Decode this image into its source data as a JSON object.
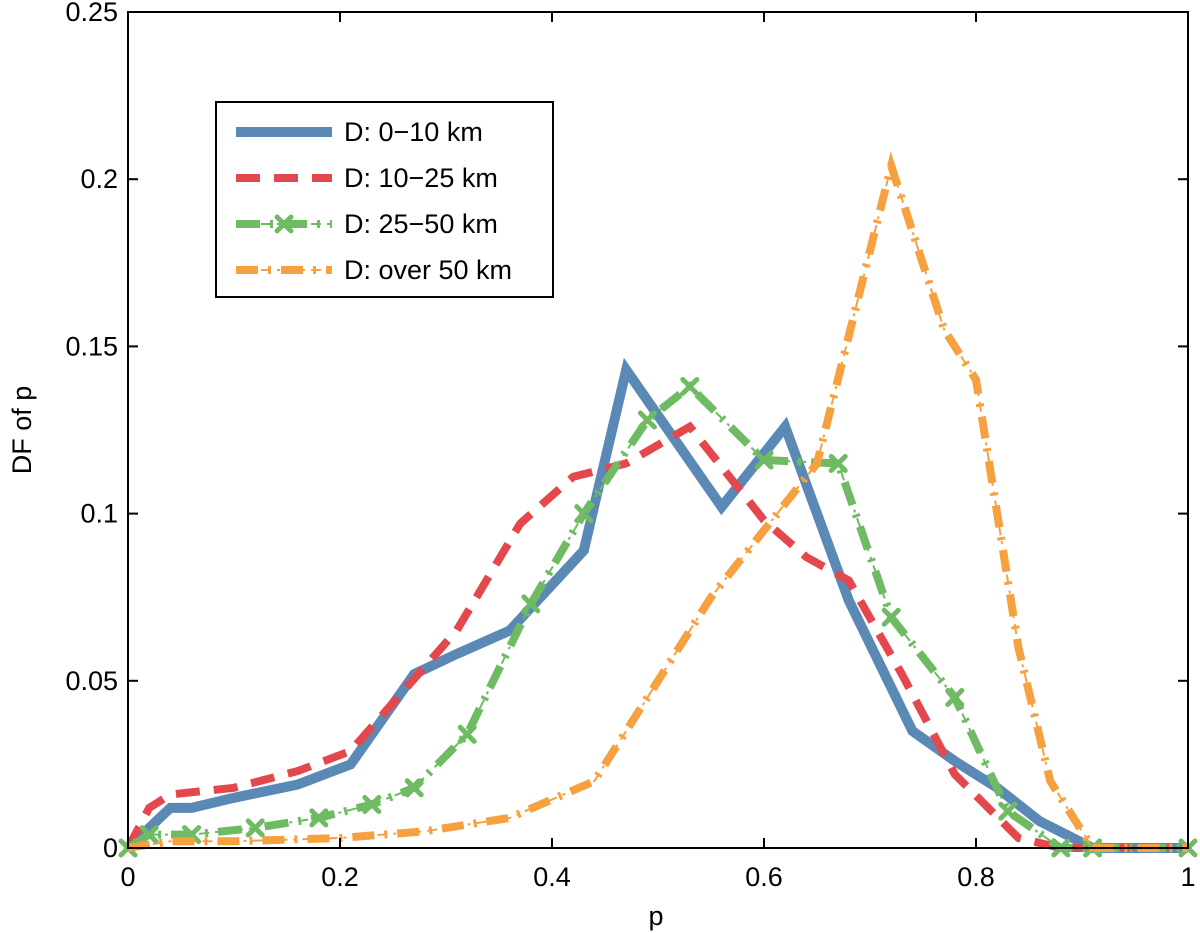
{
  "chart_data": {
    "type": "line",
    "title": "",
    "xlabel": "p",
    "ylabel": "DF of p",
    "xlim": [
      0,
      1
    ],
    "ylim": [
      0,
      0.25
    ],
    "x_ticks": [
      "0",
      "0.2",
      "0.4",
      "0.6",
      "0.8",
      "1"
    ],
    "y_ticks": [
      "0",
      "0.05",
      "0.1",
      "0.15",
      "0.2",
      "0.25"
    ],
    "grid": false,
    "legend_position": "top-left",
    "series": [
      {
        "name": "D: 0−10 km",
        "color": "#5b89b5",
        "style": "solid",
        "marker": "none",
        "x": [
          0,
          0.04,
          0.06,
          0.1,
          0.16,
          0.21,
          0.27,
          0.31,
          0.36,
          0.43,
          0.47,
          0.56,
          0.62,
          0.68,
          0.74,
          0.78,
          0.82,
          0.86,
          0.91,
          1.0
        ],
        "y": [
          0,
          0.012,
          0.012,
          0.015,
          0.019,
          0.025,
          0.052,
          0.058,
          0.065,
          0.089,
          0.143,
          0.102,
          0.126,
          0.074,
          0.035,
          0.026,
          0.018,
          0.008,
          0,
          0
        ]
      },
      {
        "name": "D: 10−25 km",
        "color": "#e4484c",
        "style": "dashed",
        "marker": "none",
        "x": [
          0,
          0.02,
          0.04,
          0.1,
          0.16,
          0.21,
          0.26,
          0.31,
          0.37,
          0.42,
          0.47,
          0.53,
          0.6,
          0.64,
          0.68,
          0.73,
          0.78,
          0.84,
          0.88,
          0.92,
          1.0
        ],
        "y": [
          0,
          0.012,
          0.016,
          0.018,
          0.023,
          0.029,
          0.047,
          0.065,
          0.097,
          0.111,
          0.115,
          0.126,
          0.098,
          0.087,
          0.08,
          0.052,
          0.022,
          0.003,
          0,
          0,
          0
        ]
      },
      {
        "name": "D: 25−50 km",
        "color": "#6fbb63",
        "style": "dashdot",
        "marker": "x",
        "x": [
          0,
          0.02,
          0.06,
          0.12,
          0.18,
          0.23,
          0.27,
          0.32,
          0.38,
          0.43,
          0.49,
          0.53,
          0.6,
          0.67,
          0.72,
          0.78,
          0.83,
          0.88,
          0.91,
          1.0
        ],
        "y": [
          0,
          0.004,
          0.004,
          0.006,
          0.009,
          0.013,
          0.018,
          0.034,
          0.073,
          0.1,
          0.128,
          0.138,
          0.116,
          0.115,
          0.069,
          0.045,
          0.011,
          0,
          0,
          0
        ]
      },
      {
        "name": "D: over 50 km",
        "color": "#f7a040",
        "style": "dashdot",
        "marker": "none",
        "x": [
          0,
          0.04,
          0.1,
          0.2,
          0.28,
          0.36,
          0.44,
          0.5,
          0.55,
          0.6,
          0.65,
          0.72,
          0.77,
          0.8,
          0.84,
          0.87,
          0.91,
          1.0
        ],
        "y": [
          0,
          0.002,
          0.002,
          0.003,
          0.005,
          0.009,
          0.02,
          0.05,
          0.075,
          0.095,
          0.115,
          0.204,
          0.155,
          0.14,
          0.06,
          0.02,
          0,
          0
        ]
      }
    ]
  }
}
